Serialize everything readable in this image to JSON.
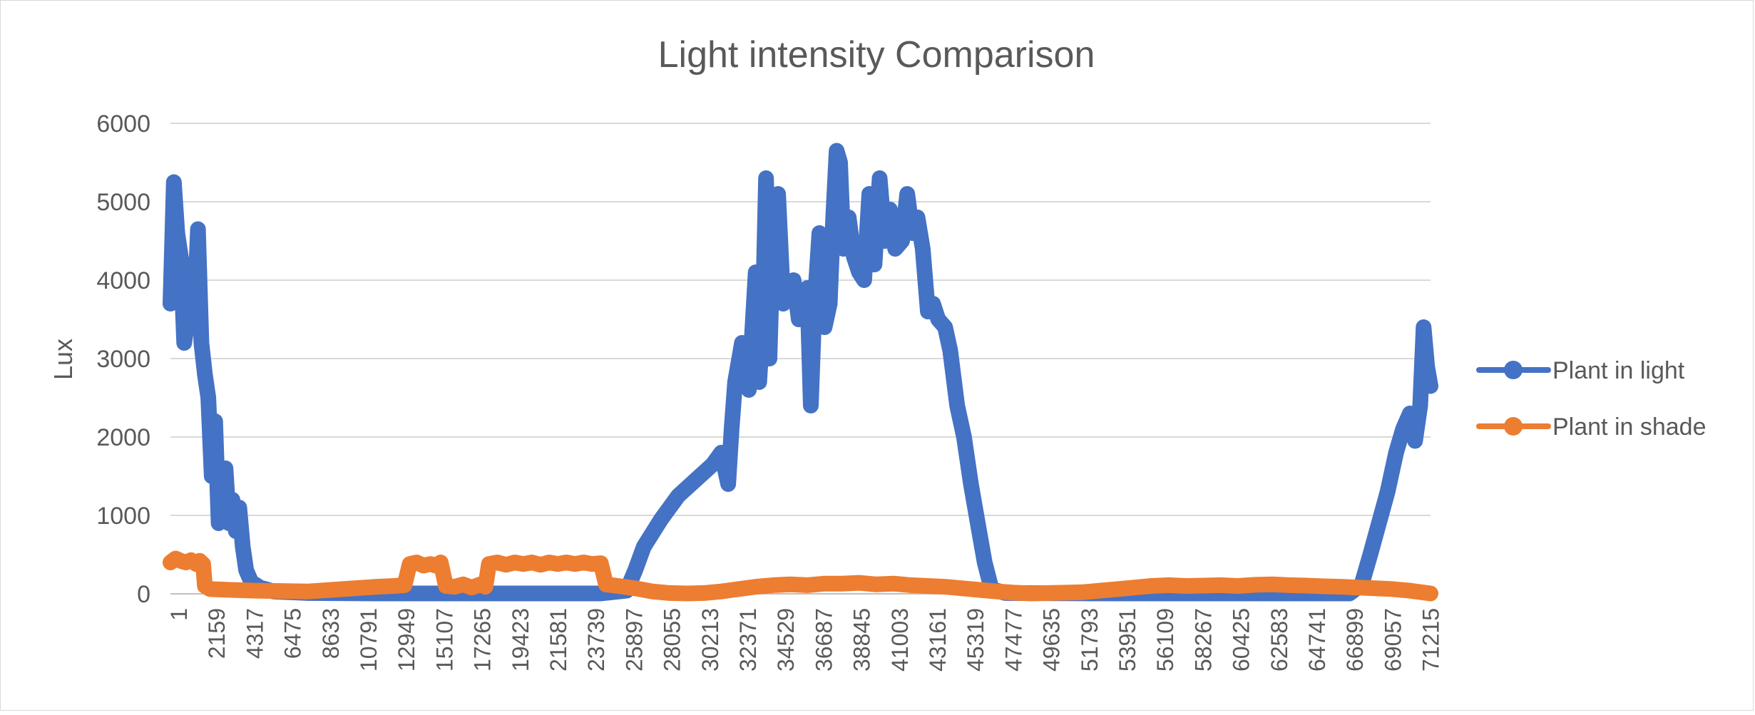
{
  "chart_data": {
    "type": "line",
    "title": "Light intensity Comparison",
    "xlabel": "",
    "ylabel": "Lux",
    "ylim": [
      0,
      6000
    ],
    "yticks": [
      0,
      1000,
      2000,
      3000,
      4000,
      5000,
      6000
    ],
    "x_tick_labels": [
      "1",
      "2159",
      "4317",
      "6475",
      "8633",
      "10791",
      "12949",
      "15107",
      "17265",
      "19423",
      "21581",
      "23739",
      "25897",
      "28055",
      "30213",
      "32371",
      "34529",
      "36687",
      "38845",
      "41003",
      "43161",
      "45319",
      "47477",
      "49635",
      "51793",
      "53951",
      "56109",
      "58267",
      "60425",
      "62583",
      "64741",
      "66899",
      "69057",
      "71215"
    ],
    "xlim": [
      1,
      73200
    ],
    "grid": true,
    "legend_position": "right",
    "series": [
      {
        "name": "Plant in light",
        "color": "#4472C4",
        "points": [
          [
            1,
            3700
          ],
          [
            200,
            5250
          ],
          [
            400,
            4600
          ],
          [
            600,
            4300
          ],
          [
            800,
            3200
          ],
          [
            1000,
            3500
          ],
          [
            1200,
            4200
          ],
          [
            1400,
            3600
          ],
          [
            1600,
            4650
          ],
          [
            1800,
            3200
          ],
          [
            2000,
            2800
          ],
          [
            2200,
            2500
          ],
          [
            2400,
            1500
          ],
          [
            2600,
            2200
          ],
          [
            2800,
            900
          ],
          [
            3000,
            1300
          ],
          [
            3200,
            1600
          ],
          [
            3400,
            900
          ],
          [
            3600,
            1200
          ],
          [
            3800,
            800
          ],
          [
            4000,
            1100
          ],
          [
            4200,
            600
          ],
          [
            4400,
            300
          ],
          [
            4700,
            150
          ],
          [
            5200,
            80
          ],
          [
            6000,
            30
          ],
          [
            8000,
            10
          ],
          [
            12000,
            5
          ],
          [
            20000,
            5
          ],
          [
            25000,
            5
          ],
          [
            26500,
            40
          ],
          [
            27000,
            300
          ],
          [
            27500,
            600
          ],
          [
            28500,
            950
          ],
          [
            29500,
            1250
          ],
          [
            30500,
            1450
          ],
          [
            31500,
            1650
          ],
          [
            32000,
            1800
          ],
          [
            32400,
            1400
          ],
          [
            32600,
            2100
          ],
          [
            32800,
            2700
          ],
          [
            33200,
            3200
          ],
          [
            33600,
            2600
          ],
          [
            34000,
            4100
          ],
          [
            34200,
            2700
          ],
          [
            34400,
            3400
          ],
          [
            34600,
            5300
          ],
          [
            34800,
            3000
          ],
          [
            35000,
            4500
          ],
          [
            35300,
            5100
          ],
          [
            35600,
            3700
          ],
          [
            35900,
            3900
          ],
          [
            36200,
            4000
          ],
          [
            36500,
            3500
          ],
          [
            36800,
            3700
          ],
          [
            37000,
            3900
          ],
          [
            37200,
            2400
          ],
          [
            37400,
            3600
          ],
          [
            37700,
            4600
          ],
          [
            38000,
            3400
          ],
          [
            38300,
            3700
          ],
          [
            38500,
            4800
          ],
          [
            38700,
            5650
          ],
          [
            38900,
            5500
          ],
          [
            39100,
            4400
          ],
          [
            39400,
            4800
          ],
          [
            39700,
            4300
          ],
          [
            40000,
            4100
          ],
          [
            40300,
            4000
          ],
          [
            40600,
            5100
          ],
          [
            40900,
            4200
          ],
          [
            41200,
            5300
          ],
          [
            41500,
            4500
          ],
          [
            41800,
            4900
          ],
          [
            42100,
            4400
          ],
          [
            42500,
            4500
          ],
          [
            42800,
            5100
          ],
          [
            43100,
            4600
          ],
          [
            43400,
            4800
          ],
          [
            43700,
            4400
          ],
          [
            44000,
            3600
          ],
          [
            44300,
            3700
          ],
          [
            44600,
            3500
          ],
          [
            45000,
            3400
          ],
          [
            45300,
            3100
          ],
          [
            45700,
            2400
          ],
          [
            46100,
            2000
          ],
          [
            46500,
            1400
          ],
          [
            46900,
            900
          ],
          [
            47300,
            400
          ],
          [
            47700,
            60
          ],
          [
            48500,
            10
          ],
          [
            55000,
            5
          ],
          [
            60000,
            5
          ],
          [
            65000,
            5
          ],
          [
            68500,
            5
          ],
          [
            69200,
            120
          ],
          [
            69700,
            500
          ],
          [
            70200,
            900
          ],
          [
            70700,
            1300
          ],
          [
            71200,
            1800
          ],
          [
            71600,
            2100
          ],
          [
            72000,
            2300
          ],
          [
            72300,
            1950
          ],
          [
            72600,
            2400
          ],
          [
            72800,
            3400
          ],
          [
            73000,
            2900
          ],
          [
            73200,
            2650
          ]
        ]
      },
      {
        "name": "Plant in shade",
        "color": "#ED7D31",
        "points": [
          [
            1,
            400
          ],
          [
            300,
            450
          ],
          [
            600,
            420
          ],
          [
            900,
            400
          ],
          [
            1200,
            430
          ],
          [
            1500,
            380
          ],
          [
            1700,
            420
          ],
          [
            1900,
            380
          ],
          [
            2000,
            100
          ],
          [
            2300,
            60
          ],
          [
            3500,
            50
          ],
          [
            5000,
            40
          ],
          [
            8000,
            30
          ],
          [
            10000,
            60
          ],
          [
            12000,
            90
          ],
          [
            13000,
            100
          ],
          [
            13600,
            110
          ],
          [
            13900,
            380
          ],
          [
            14300,
            400
          ],
          [
            14700,
            360
          ],
          [
            15100,
            380
          ],
          [
            15400,
            360
          ],
          [
            15700,
            400
          ],
          [
            16000,
            100
          ],
          [
            16500,
            90
          ],
          [
            17000,
            120
          ],
          [
            17500,
            80
          ],
          [
            18000,
            120
          ],
          [
            18300,
            90
          ],
          [
            18500,
            380
          ],
          [
            19000,
            400
          ],
          [
            19500,
            370
          ],
          [
            20000,
            400
          ],
          [
            20500,
            380
          ],
          [
            21000,
            400
          ],
          [
            21500,
            370
          ],
          [
            22000,
            400
          ],
          [
            22500,
            380
          ],
          [
            23000,
            400
          ],
          [
            23500,
            380
          ],
          [
            24000,
            400
          ],
          [
            24500,
            380
          ],
          [
            25000,
            390
          ],
          [
            25300,
            120
          ],
          [
            26000,
            100
          ],
          [
            27000,
            70
          ],
          [
            28000,
            30
          ],
          [
            29000,
            10
          ],
          [
            30000,
            5
          ],
          [
            31000,
            10
          ],
          [
            32000,
            30
          ],
          [
            33000,
            60
          ],
          [
            34000,
            90
          ],
          [
            35000,
            110
          ],
          [
            36000,
            120
          ],
          [
            37000,
            110
          ],
          [
            38000,
            130
          ],
          [
            39000,
            130
          ],
          [
            40000,
            140
          ],
          [
            41000,
            120
          ],
          [
            42000,
            130
          ],
          [
            43000,
            110
          ],
          [
            44000,
            100
          ],
          [
            45000,
            90
          ],
          [
            46000,
            70
          ],
          [
            47000,
            50
          ],
          [
            48000,
            30
          ],
          [
            49000,
            15
          ],
          [
            50000,
            5
          ],
          [
            51000,
            10
          ],
          [
            52000,
            15
          ],
          [
            53000,
            20
          ],
          [
            54000,
            40
          ],
          [
            55000,
            60
          ],
          [
            56000,
            80
          ],
          [
            57000,
            100
          ],
          [
            58000,
            110
          ],
          [
            59000,
            100
          ],
          [
            60000,
            105
          ],
          [
            61000,
            110
          ],
          [
            62000,
            100
          ],
          [
            63000,
            115
          ],
          [
            64000,
            120
          ],
          [
            65000,
            110
          ],
          [
            66000,
            105
          ],
          [
            67000,
            95
          ],
          [
            68000,
            90
          ],
          [
            69000,
            80
          ],
          [
            70000,
            70
          ],
          [
            71000,
            60
          ],
          [
            72000,
            40
          ],
          [
            73200,
            5
          ]
        ]
      }
    ]
  }
}
